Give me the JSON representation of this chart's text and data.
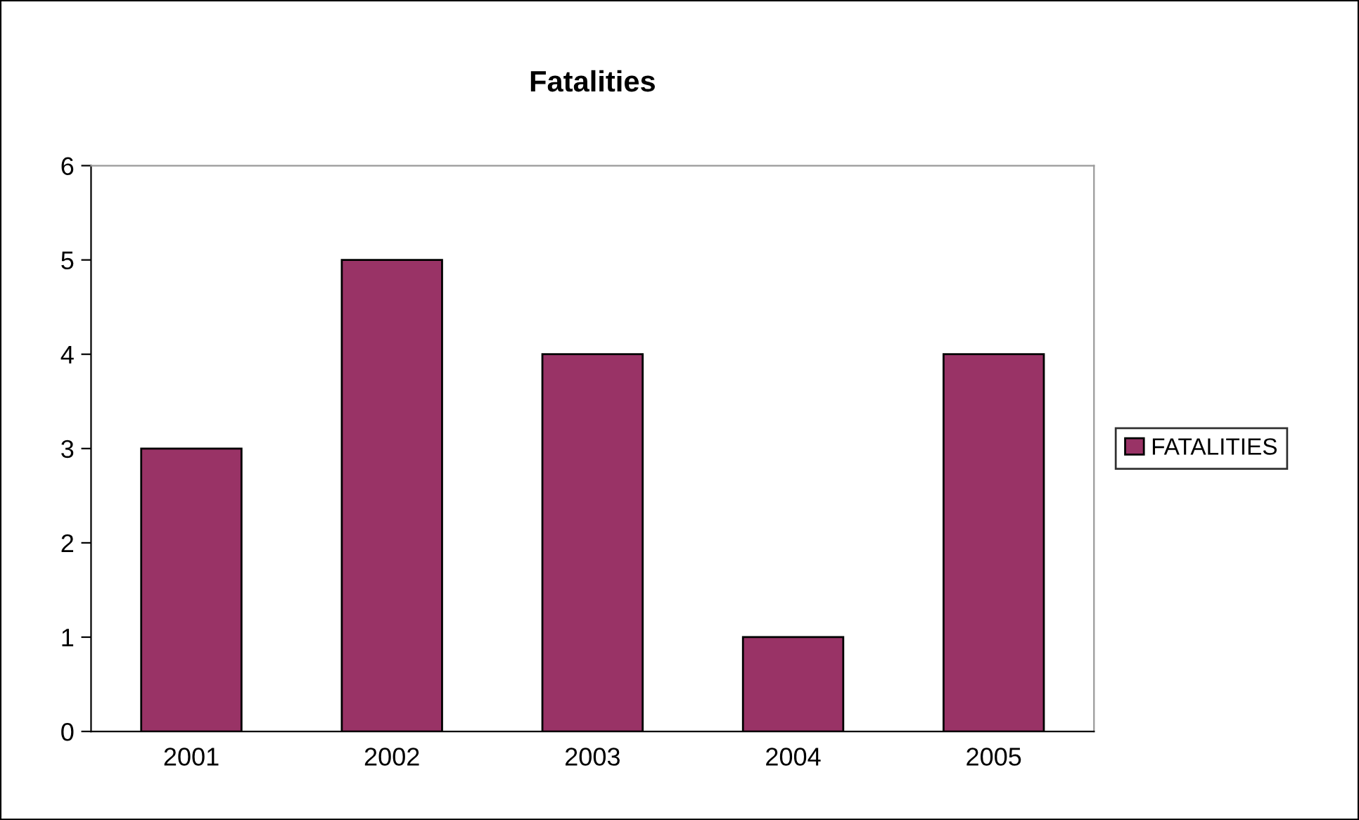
{
  "chart_data": {
    "type": "bar",
    "title": "Fatalities",
    "categories": [
      "2001",
      "2002",
      "2003",
      "2004",
      "2005"
    ],
    "series": [
      {
        "name": "FATALITIES",
        "color": "#993366",
        "values": [
          3,
          5,
          4,
          1,
          4
        ]
      }
    ],
    "ylim": [
      0,
      6
    ],
    "yticks": [
      0,
      1,
      2,
      3,
      4,
      5,
      6
    ],
    "grid": false,
    "legend": "right"
  }
}
